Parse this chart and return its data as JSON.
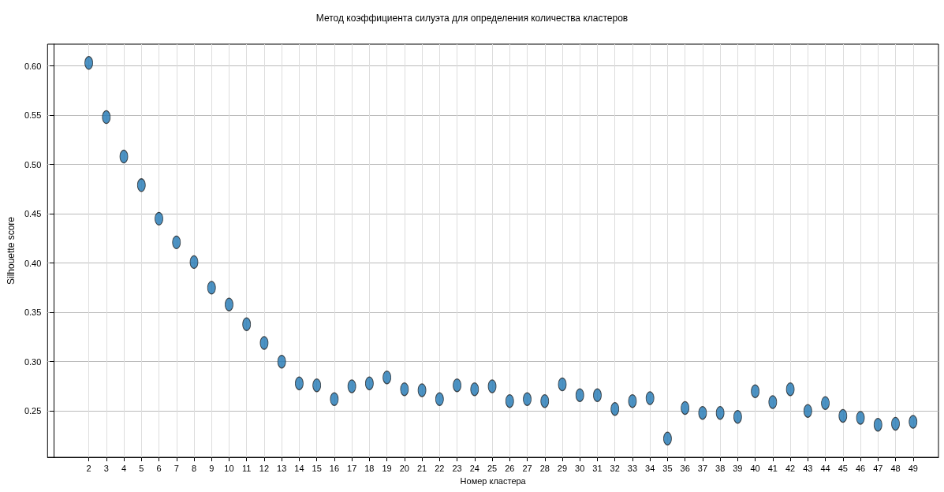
{
  "chart_data": {
    "type": "scatter",
    "title": "Метод коэффициента силуэта для определения количества кластеров",
    "xlabel": "Номер кластера",
    "ylabel": "Silhouette score",
    "x": [
      2,
      3,
      4,
      5,
      6,
      7,
      8,
      9,
      10,
      11,
      12,
      13,
      14,
      15,
      16,
      17,
      18,
      19,
      20,
      21,
      22,
      23,
      24,
      25,
      26,
      27,
      28,
      29,
      30,
      31,
      32,
      33,
      34,
      35,
      36,
      37,
      38,
      39,
      40,
      41,
      42,
      43,
      44,
      45,
      46,
      47,
      48,
      49
    ],
    "series": [
      {
        "color": "#1f77b4",
        "values": [
          0.603,
          0.548,
          0.508,
          0.479,
          0.445,
          0.421,
          0.401,
          0.375,
          0.358,
          0.338,
          0.319,
          0.3,
          0.278,
          0.276,
          0.262,
          0.275,
          0.278,
          0.284,
          0.272,
          0.271,
          0.262,
          0.276,
          0.272,
          0.275,
          0.26,
          0.262,
          0.26,
          0.277,
          0.266,
          0.266,
          0.252,
          0.26,
          0.263,
          0.222,
          0.253,
          0.248,
          0.248,
          0.244,
          0.27,
          0.259,
          0.272,
          0.25,
          0.258,
          0.245,
          0.243,
          0.236,
          0.237,
          0.239
        ]
      }
    ],
    "xlim": [
      -0.35,
      50.45
    ],
    "xticks": [
      2,
      3,
      4,
      5,
      6,
      7,
      8,
      9,
      10,
      11,
      12,
      13,
      14,
      15,
      16,
      17,
      18,
      19,
      20,
      21,
      22,
      23,
      24,
      25,
      26,
      27,
      28,
      29,
      30,
      31,
      32,
      33,
      34,
      35,
      36,
      37,
      38,
      39,
      40,
      41,
      42,
      43,
      44,
      45,
      46,
      47,
      48,
      49
    ],
    "ylim": [
      0.203,
      0.622
    ],
    "yticks": [
      {
        "value": 0.25,
        "label": "0.25"
      },
      {
        "value": 0.3,
        "label": "0.30"
      },
      {
        "value": 0.35,
        "label": "0.35"
      },
      {
        "value": 0.4,
        "label": "0.40"
      },
      {
        "value": 0.45,
        "label": "0.45"
      },
      {
        "value": 0.5,
        "label": "0.50"
      },
      {
        "value": 0.55,
        "label": "0.55"
      },
      {
        "value": 0.6,
        "label": "0.60"
      }
    ],
    "grid": true,
    "marker": "circle"
  }
}
